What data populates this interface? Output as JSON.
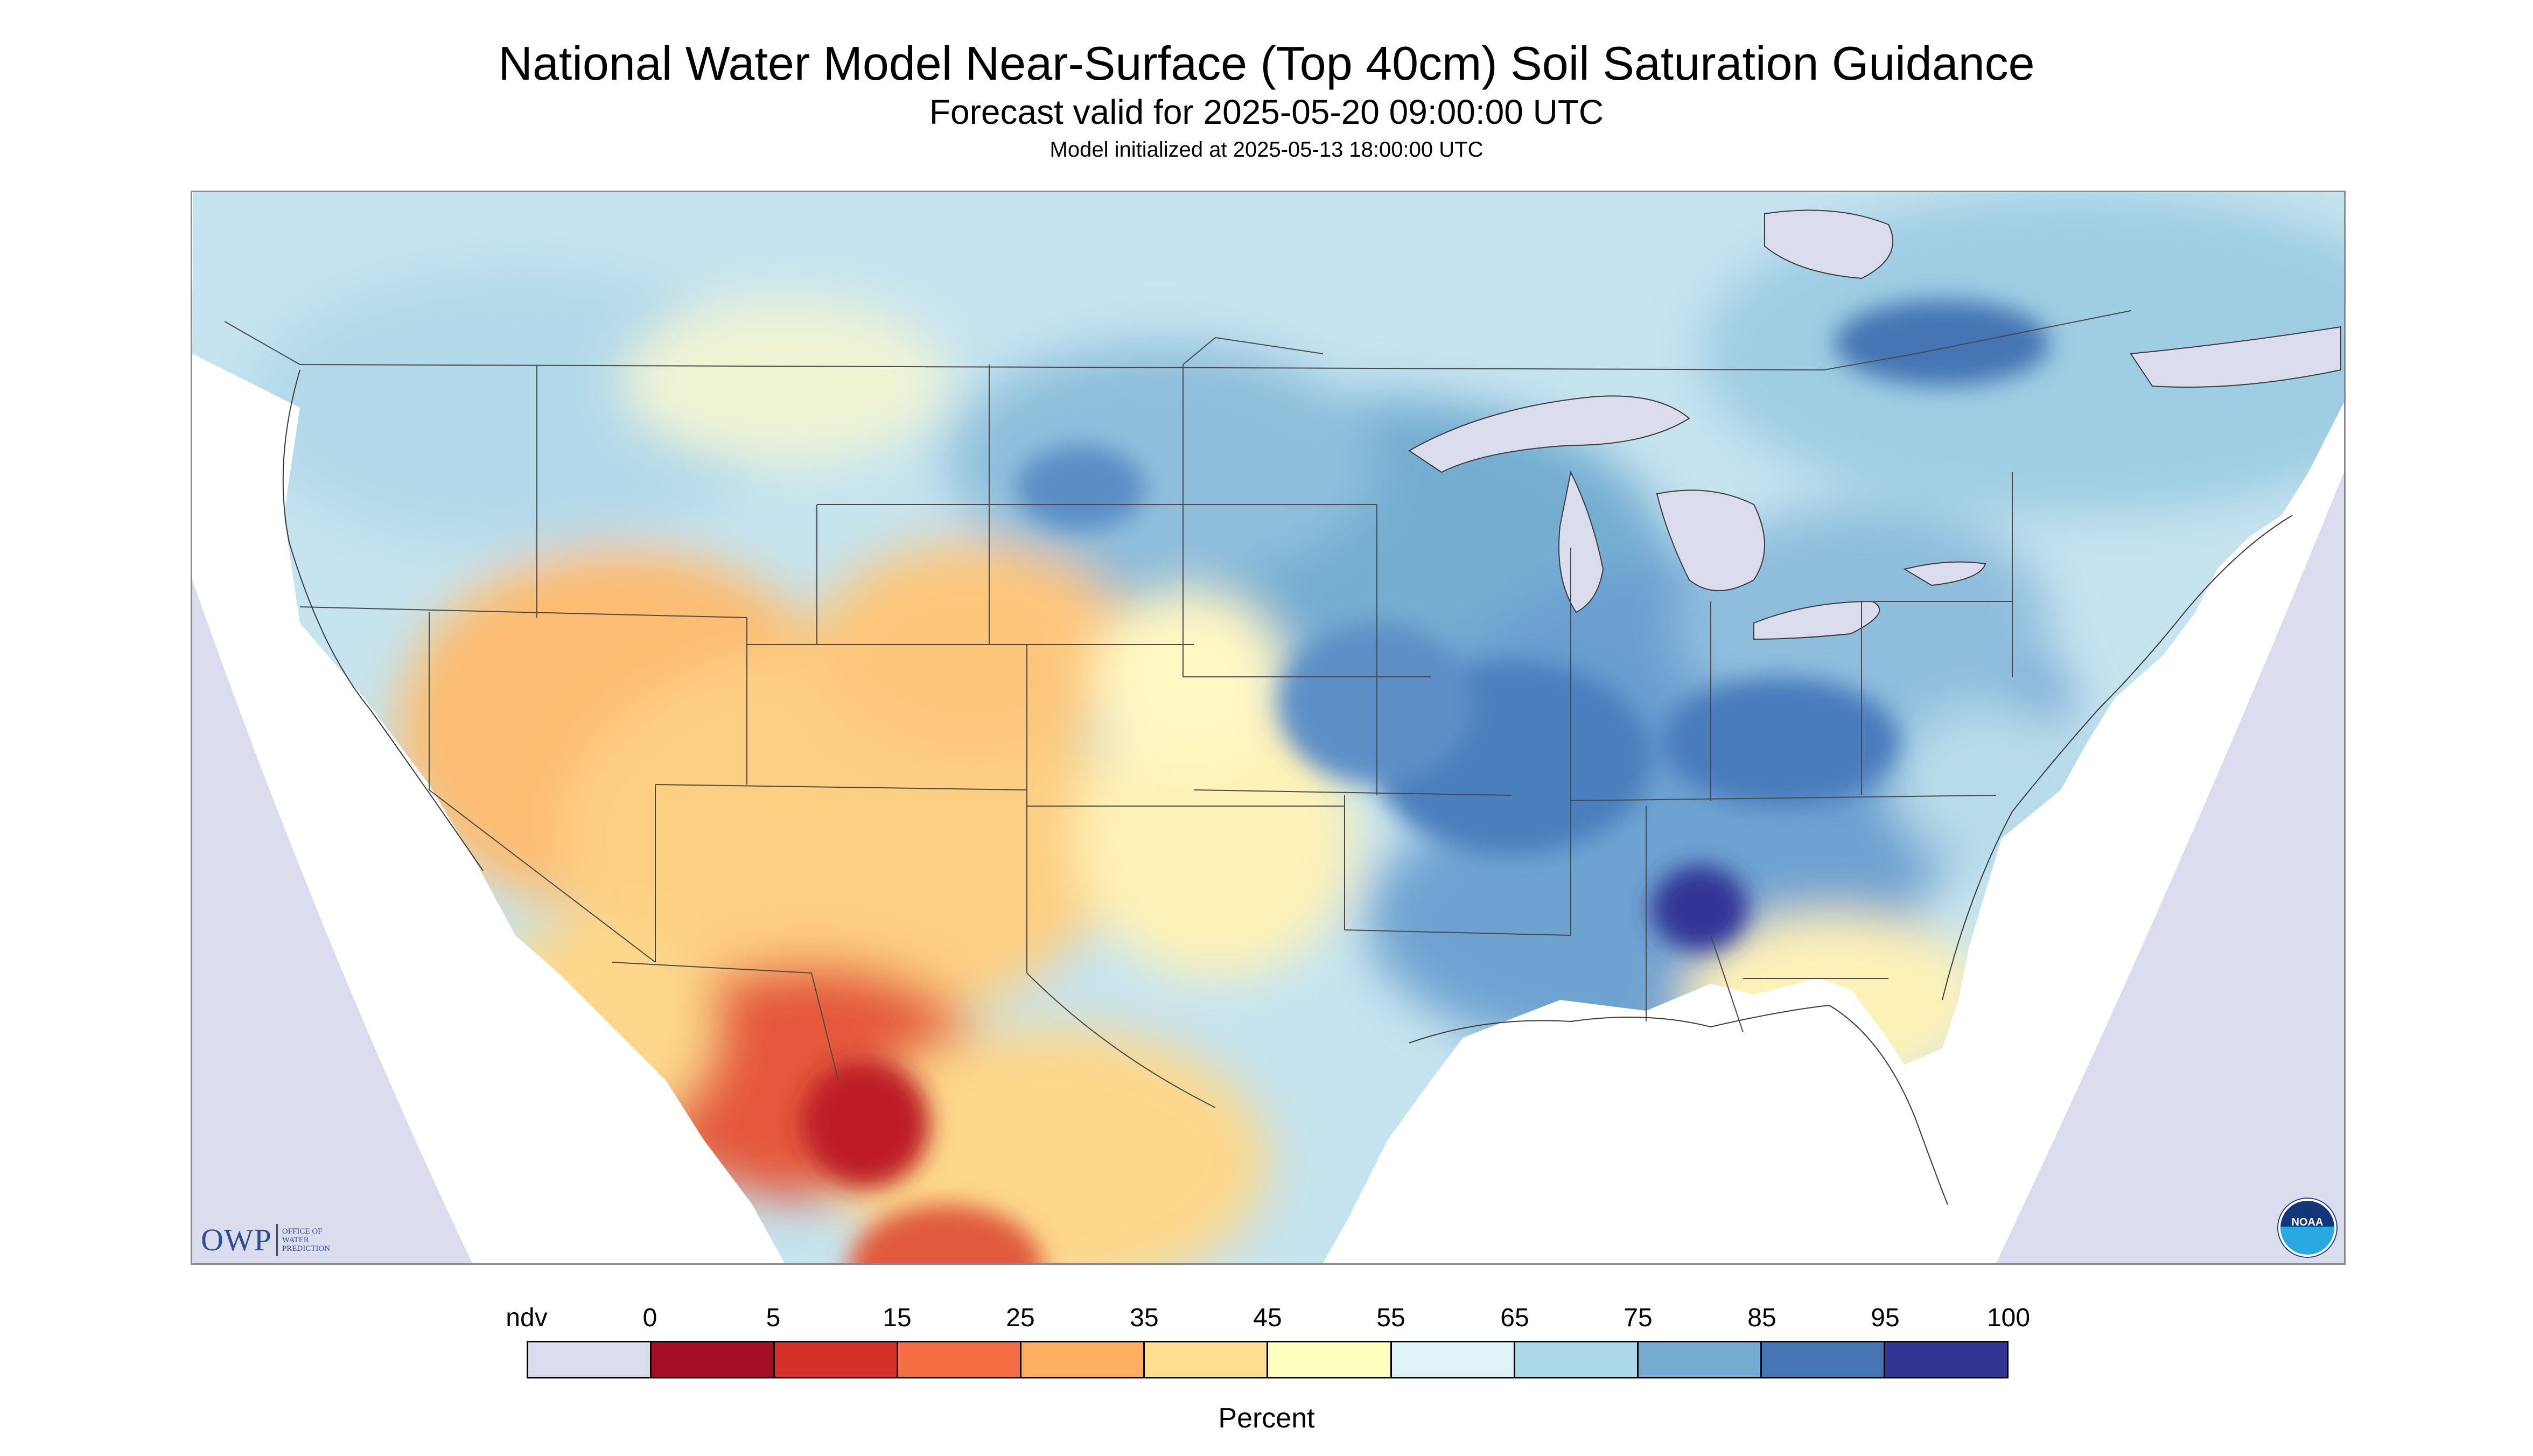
{
  "title": "National Water Model Near-Surface (Top 40cm) Soil Saturation Guidance",
  "subtitle": "Forecast valid for 2025-05-20 09:00:00 UTC",
  "init_line": "Model initialized at 2025-05-13 18:00:00 UTC",
  "legend": {
    "labels": [
      "ndv",
      "0",
      "5",
      "15",
      "25",
      "35",
      "45",
      "55",
      "65",
      "75",
      "85",
      "95",
      "100"
    ],
    "colors": [
      "#dcdcef",
      "#a50f26",
      "#d73027",
      "#f46d43",
      "#fdae61",
      "#fee090",
      "#ffffbf",
      "#e0f3f8",
      "#abd9e9",
      "#74add1",
      "#4575b4",
      "#313695"
    ],
    "title": "Percent"
  },
  "logos": {
    "owp_main": "OWP",
    "owp_sub": "OFFICE OF\nWATER\nPREDICTION",
    "noaa": "NOAA"
  },
  "map_colors": {
    "no_data": "#dcdcef",
    "water": "#dcdcef",
    "border": "#3a3a3a"
  }
}
